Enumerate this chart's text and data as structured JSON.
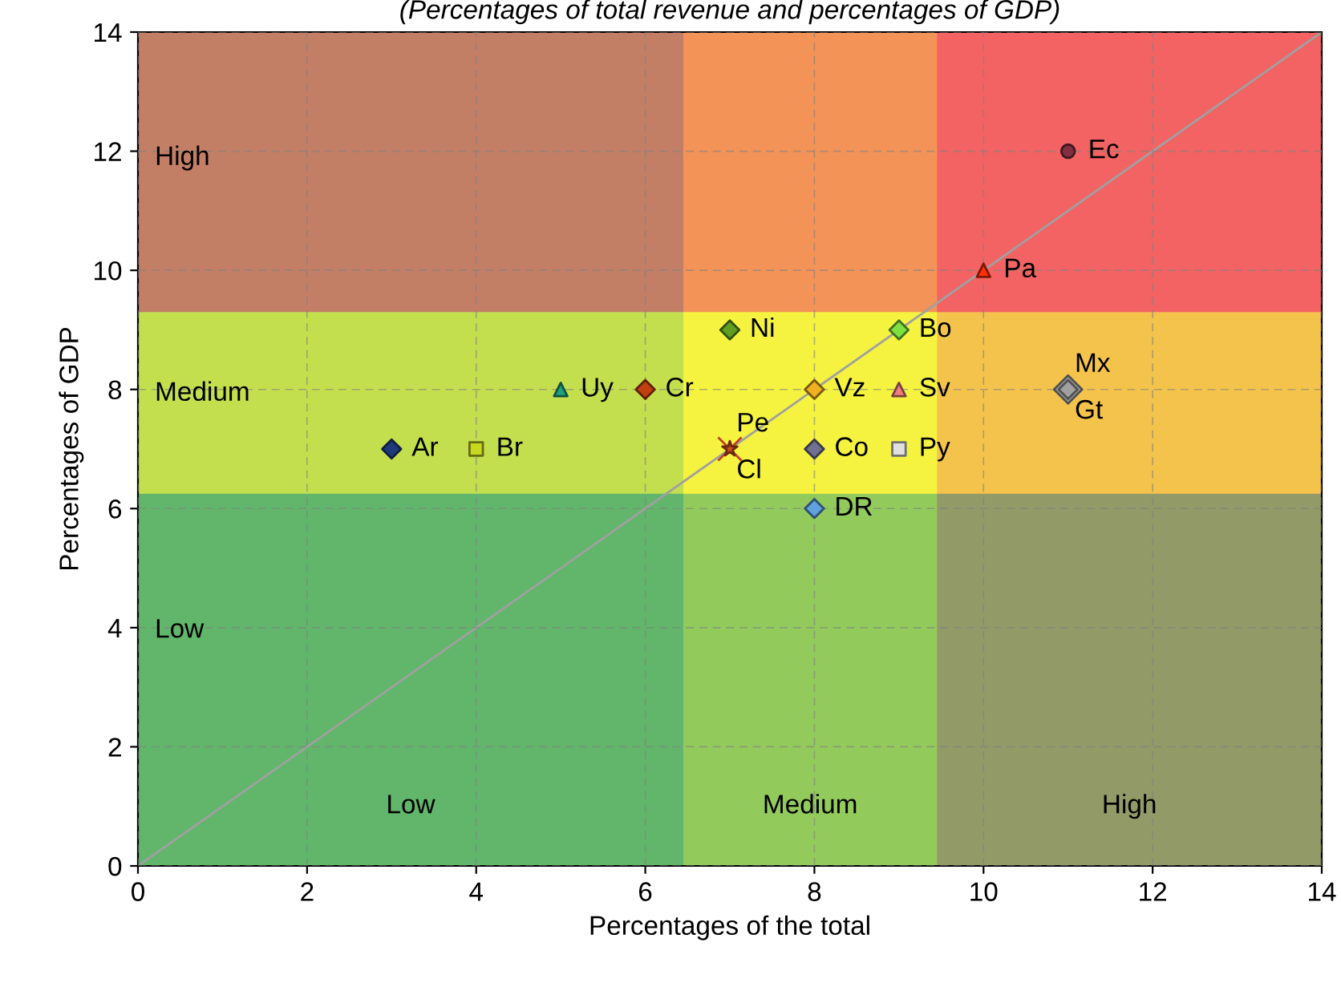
{
  "chart_data": {
    "type": "scatter",
    "title": "(Percentages of total revenue and percentages of GDP)",
    "xlabel": "Percentages of the total",
    "ylabel": "Percentages of GDP",
    "xlim": [
      0,
      14
    ],
    "ylim": [
      0,
      14
    ],
    "xticks": [
      0,
      2,
      4,
      6,
      8,
      10,
      12,
      14
    ],
    "yticks": [
      0,
      2,
      4,
      6,
      8,
      10,
      12,
      14
    ],
    "grid": true,
    "legend": false,
    "bands": [
      {
        "axis": "x",
        "from": 0,
        "to": 6.45,
        "label": "Low",
        "color": "#2e9e3a"
      },
      {
        "axis": "x",
        "from": 6.45,
        "to": 9.45,
        "label": "Medium",
        "color": "#f2f000"
      },
      {
        "axis": "x",
        "from": 9.45,
        "to": 14,
        "label": "High",
        "color": "#f03030"
      },
      {
        "axis": "y",
        "from": 0,
        "to": 6.25,
        "label": "Low",
        "color": "#2e9e3a"
      },
      {
        "axis": "y",
        "from": 6.25,
        "to": 9.3,
        "label": "Medium",
        "color": "#f2f000"
      },
      {
        "axis": "y",
        "from": 9.3,
        "to": 14,
        "label": "High",
        "color": "#f03030"
      }
    ],
    "series": [
      {
        "type": "line",
        "color": "#a0a0a0",
        "marker": "none",
        "x": [
          0,
          14
        ],
        "values": [
          0,
          14
        ]
      },
      {
        "name": "Ar",
        "color": "#1f3a7a",
        "marker": "diamond",
        "x": [
          3
        ],
        "values": [
          7
        ]
      },
      {
        "name": "Br",
        "color": "#c8d820",
        "marker": "square",
        "x": [
          4
        ],
        "values": [
          7
        ]
      },
      {
        "name": "Uy",
        "color": "#20a080",
        "marker": "triangle",
        "x": [
          5
        ],
        "values": [
          8
        ]
      },
      {
        "name": "Cr",
        "color": "#c04010",
        "marker": "diamond",
        "x": [
          6
        ],
        "values": [
          8
        ]
      },
      {
        "name": "Ni",
        "color": "#60a020",
        "marker": "diamond",
        "x": [
          7
        ],
        "values": [
          9
        ]
      },
      {
        "name": "Pe",
        "color": "#c04020",
        "marker": "cross",
        "x": [
          7
        ],
        "values": [
          7
        ]
      },
      {
        "name": "Cl",
        "color": "#d05020",
        "marker": "star",
        "x": [
          7
        ],
        "values": [
          7
        ]
      },
      {
        "name": "Vz",
        "color": "#f0b020",
        "marker": "diamond",
        "x": [
          8
        ],
        "values": [
          8
        ]
      },
      {
        "name": "Co",
        "color": "#707090",
        "marker": "diamond",
        "x": [
          8
        ],
        "values": [
          7
        ]
      },
      {
        "name": "DR",
        "color": "#60a0e0",
        "marker": "diamond",
        "x": [
          8
        ],
        "values": [
          6
        ]
      },
      {
        "name": "Bo",
        "color": "#80e040",
        "marker": "diamond",
        "x": [
          9
        ],
        "values": [
          9
        ]
      },
      {
        "name": "Sv",
        "color": "#f08080",
        "marker": "triangle",
        "x": [
          9
        ],
        "values": [
          8
        ]
      },
      {
        "name": "Py",
        "color": "#e0e0e0",
        "marker": "square",
        "x": [
          9
        ],
        "values": [
          7
        ]
      },
      {
        "name": "Pa",
        "color": "#ff3000",
        "marker": "triangle",
        "x": [
          10
        ],
        "values": [
          10
        ]
      },
      {
        "name": "Ec",
        "color": "#803040",
        "marker": "circle",
        "x": [
          11
        ],
        "values": [
          12
        ]
      },
      {
        "name": "Mx",
        "color": "#a0a0a0",
        "marker": "diamond",
        "x": [
          11
        ],
        "values": [
          8
        ]
      },
      {
        "name": "Gt",
        "color": "#a0a0a0",
        "marker": "diamond",
        "x": [
          11
        ],
        "values": [
          8
        ]
      }
    ]
  }
}
